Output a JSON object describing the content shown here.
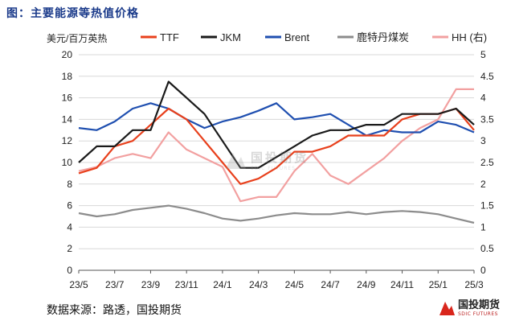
{
  "figure_title": "图：主要能源等热值价格",
  "source": "数据来源：路透，国投期货",
  "logo": {
    "name": "国投期货",
    "sub": "SDIC FUTURES"
  },
  "watermark": {
    "name": "国投期货",
    "sub": "SDIC FUTURES"
  },
  "colors": {
    "TTF": "#e8401c",
    "JKM": "#1a1a1a",
    "Brent": "#1f4fb0",
    "鹿特丹煤炭": "#8c8c8c",
    "HH": "#f2a0a0",
    "grid": "#d8d8d8",
    "logo_red": "#d9261c"
  },
  "chart_data": {
    "type": "line",
    "title": "",
    "ylabel": "美元/百万英热",
    "xlabel": "",
    "ylim": [
      0,
      20
    ],
    "y2lim": [
      0,
      5
    ],
    "yticks": [
      "0",
      "2",
      "4",
      "6",
      "8",
      "10",
      "12",
      "14",
      "16",
      "18",
      "20"
    ],
    "y2ticks": [
      "0",
      "0.5",
      "1",
      "1.5",
      "2",
      "2.5",
      "3",
      "3.5",
      "4",
      "4.5",
      "5"
    ],
    "xticks": [
      "23/5",
      "23/7",
      "23/9",
      "23/11",
      "24/1",
      "24/3",
      "24/5",
      "24/7",
      "24/9",
      "24/11",
      "25/1",
      "25/3"
    ],
    "grid": "horizontal",
    "legend": "top",
    "x": [
      "23/5",
      "23/6",
      "23/7",
      "23/8",
      "23/9",
      "23/10",
      "23/11",
      "23/12",
      "24/1",
      "24/2",
      "24/3",
      "24/4",
      "24/5",
      "24/6",
      "24/7",
      "24/8",
      "24/9",
      "24/10",
      "24/11",
      "24/12",
      "25/1",
      "25/2",
      "25/3"
    ],
    "series": [
      {
        "name": "TTF",
        "axis": "left",
        "values": [
          9.0,
          9.5,
          11.5,
          12.0,
          13.5,
          15.0,
          14.0,
          12.0,
          10.0,
          8.0,
          8.5,
          9.5,
          11.0,
          11.0,
          11.5,
          12.5,
          12.5,
          12.5,
          14.0,
          14.5,
          14.5,
          15.0,
          13.0
        ]
      },
      {
        "name": "JKM",
        "axis": "left",
        "values": [
          10.0,
          11.5,
          11.5,
          13.0,
          13.0,
          17.5,
          16.0,
          14.5,
          12.0,
          9.5,
          9.5,
          10.5,
          11.5,
          12.5,
          13.0,
          13.0,
          13.5,
          13.5,
          14.5,
          14.5,
          14.5,
          15.0,
          13.5
        ]
      },
      {
        "name": "Brent",
        "axis": "left",
        "values": [
          13.2,
          13.0,
          13.8,
          15.0,
          15.5,
          15.0,
          14.0,
          13.2,
          13.8,
          14.2,
          14.8,
          15.5,
          14.0,
          14.2,
          14.5,
          13.5,
          12.5,
          13.0,
          12.8,
          12.8,
          13.8,
          13.5,
          12.8
        ]
      },
      {
        "name": "鹿特丹煤炭",
        "axis": "left",
        "values": [
          5.3,
          5.0,
          5.2,
          5.6,
          5.8,
          6.0,
          5.7,
          5.3,
          4.8,
          4.6,
          4.8,
          5.1,
          5.3,
          5.2,
          5.2,
          5.4,
          5.2,
          5.4,
          5.5,
          5.4,
          5.2,
          4.8,
          4.4
        ]
      },
      {
        "name": "HH (右)",
        "axis": "right",
        "values": [
          2.3,
          2.4,
          2.6,
          2.7,
          2.6,
          3.2,
          2.8,
          2.6,
          2.4,
          1.6,
          1.7,
          1.7,
          2.3,
          2.7,
          2.2,
          2.0,
          2.3,
          2.6,
          3.0,
          3.3,
          3.5,
          4.2,
          4.2
        ]
      }
    ]
  }
}
